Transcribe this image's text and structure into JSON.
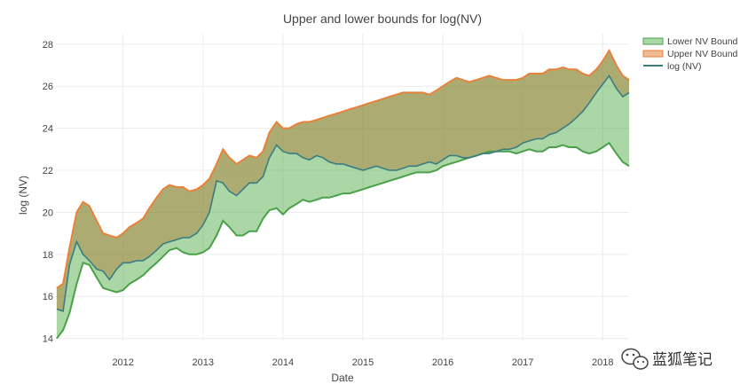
{
  "colors": {
    "lower": "#4aa14a",
    "lower_fill": "rgba(80,170,70,0.48)",
    "upper": "#e8823a",
    "upper_fill": "rgba(140,140,60,0.72)",
    "nv": "#3a7d80",
    "grid": "#ececec",
    "text": "#444444"
  },
  "watermark": {
    "icon": "wechat-icon",
    "text": "蓝狐笔记"
  },
  "chart_data": {
    "type": "area",
    "title": "Upper and lower bounds for log(NV)",
    "xlabel": "Date",
    "ylabel": "log (NV)",
    "xlim": [
      2011.16,
      2018.33
    ],
    "ylim": [
      13.9,
      28.5
    ],
    "x_ticks": [
      2012,
      2013,
      2014,
      2015,
      2016,
      2017,
      2018
    ],
    "y_ticks": [
      14,
      16,
      18,
      20,
      22,
      24,
      26,
      28
    ],
    "grid": true,
    "legend_position": "top-right",
    "x": [
      2011.17,
      2011.25,
      2011.33,
      2011.42,
      2011.5,
      2011.58,
      2011.67,
      2011.75,
      2011.83,
      2011.92,
      2012.0,
      2012.08,
      2012.17,
      2012.25,
      2012.33,
      2012.42,
      2012.5,
      2012.58,
      2012.67,
      2012.75,
      2012.83,
      2012.92,
      2013.0,
      2013.08,
      2013.17,
      2013.25,
      2013.33,
      2013.42,
      2013.5,
      2013.58,
      2013.67,
      2013.75,
      2013.83,
      2013.92,
      2014.0,
      2014.08,
      2014.17,
      2014.25,
      2014.33,
      2014.42,
      2014.5,
      2014.58,
      2014.67,
      2014.75,
      2014.83,
      2014.92,
      2015.0,
      2015.08,
      2015.17,
      2015.25,
      2015.33,
      2015.42,
      2015.5,
      2015.58,
      2015.67,
      2015.75,
      2015.83,
      2015.92,
      2016.0,
      2016.08,
      2016.17,
      2016.25,
      2016.33,
      2016.42,
      2016.5,
      2016.58,
      2016.67,
      2016.75,
      2016.83,
      2016.92,
      2017.0,
      2017.08,
      2017.17,
      2017.25,
      2017.33,
      2017.42,
      2017.5,
      2017.58,
      2017.67,
      2017.75,
      2017.83,
      2017.92,
      2018.0,
      2018.08,
      2018.17,
      2018.25,
      2018.33
    ],
    "series": [
      {
        "name": "Lower NV Bound",
        "values": [
          14.0,
          14.4,
          15.2,
          16.6,
          17.6,
          17.5,
          16.9,
          16.4,
          16.3,
          16.2,
          16.3,
          16.6,
          16.8,
          17.0,
          17.3,
          17.6,
          17.9,
          18.2,
          18.3,
          18.1,
          18.0,
          18.0,
          18.1,
          18.3,
          18.9,
          19.6,
          19.3,
          18.9,
          18.9,
          19.1,
          19.1,
          19.7,
          20.1,
          20.2,
          19.9,
          20.2,
          20.4,
          20.6,
          20.5,
          20.6,
          20.7,
          20.7,
          20.8,
          20.9,
          20.9,
          21.0,
          21.1,
          21.2,
          21.3,
          21.4,
          21.5,
          21.6,
          21.7,
          21.8,
          21.9,
          21.9,
          21.9,
          22.0,
          22.2,
          22.3,
          22.4,
          22.5,
          22.6,
          22.7,
          22.8,
          22.9,
          22.9,
          22.9,
          22.9,
          22.8,
          22.9,
          23.0,
          22.9,
          22.9,
          23.1,
          23.1,
          23.2,
          23.1,
          23.1,
          22.9,
          22.8,
          22.9,
          23.1,
          23.3,
          22.8,
          22.4,
          22.2
        ]
      },
      {
        "name": "Upper NV Bound",
        "values": [
          16.4,
          16.6,
          18.3,
          20.0,
          20.5,
          20.3,
          19.6,
          19.0,
          18.9,
          18.8,
          19.0,
          19.3,
          19.5,
          19.7,
          20.2,
          20.7,
          21.1,
          21.3,
          21.2,
          21.2,
          21.0,
          21.1,
          21.3,
          21.6,
          22.3,
          23.0,
          22.6,
          22.3,
          22.5,
          22.7,
          22.6,
          22.9,
          23.8,
          24.3,
          24.0,
          24.0,
          24.2,
          24.3,
          24.3,
          24.4,
          24.5,
          24.6,
          24.7,
          24.8,
          24.9,
          25.0,
          25.1,
          25.2,
          25.3,
          25.4,
          25.5,
          25.6,
          25.7,
          25.7,
          25.7,
          25.7,
          25.6,
          25.8,
          26.0,
          26.2,
          26.4,
          26.3,
          26.2,
          26.3,
          26.4,
          26.5,
          26.4,
          26.3,
          26.3,
          26.3,
          26.4,
          26.6,
          26.6,
          26.6,
          26.8,
          26.8,
          26.9,
          26.8,
          26.8,
          26.6,
          26.5,
          26.8,
          27.2,
          27.7,
          27.0,
          26.5,
          26.3
        ]
      },
      {
        "name": "log (NV)",
        "values": [
          15.4,
          15.3,
          17.5,
          18.6,
          18.0,
          17.7,
          17.3,
          17.2,
          16.8,
          17.3,
          17.6,
          17.6,
          17.7,
          17.7,
          17.9,
          18.2,
          18.5,
          18.6,
          18.7,
          18.8,
          18.8,
          19.0,
          19.4,
          20.0,
          21.5,
          21.4,
          21.0,
          20.8,
          21.1,
          21.4,
          21.4,
          21.7,
          22.6,
          23.2,
          22.9,
          22.8,
          22.8,
          22.6,
          22.5,
          22.7,
          22.6,
          22.4,
          22.3,
          22.3,
          22.2,
          22.1,
          22.0,
          22.1,
          22.2,
          22.1,
          22.0,
          22.0,
          22.1,
          22.2,
          22.2,
          22.3,
          22.4,
          22.3,
          22.5,
          22.7,
          22.7,
          22.6,
          22.6,
          22.7,
          22.8,
          22.8,
          22.9,
          23.0,
          23.0,
          23.1,
          23.3,
          23.4,
          23.5,
          23.5,
          23.7,
          23.8,
          24.0,
          24.2,
          24.5,
          24.8,
          25.2,
          25.7,
          26.1,
          26.5,
          25.9,
          25.5,
          25.7
        ]
      }
    ]
  }
}
